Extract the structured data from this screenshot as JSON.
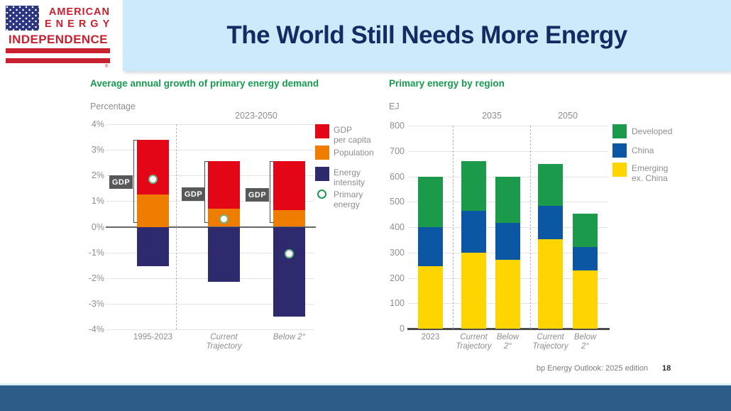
{
  "slide": {
    "logo": {
      "line1": "AMERICAN",
      "line2": "ENERGY",
      "line3": "INDEPENDENCE",
      "registered": "®"
    },
    "title": "The World Still Needs More Energy",
    "source": "bp Energy Outlook: 2025 edition",
    "page_number": "18"
  },
  "colors": {
    "title_text": "#152a63",
    "title_band": "#cdeafb",
    "heading_green": "#169a50",
    "bottom_bar": "#2d5c89",
    "gdp_red": "#e30617",
    "population_orange": "#ee7d00",
    "energy_intensity_navy": "#2e2a6e",
    "developed_green": "#1a9a4a",
    "china_blue": "#0b57a4",
    "emerging_yellow": "#ffd500",
    "logo_red": "#c8202f",
    "logo_navy": "#2a3480"
  },
  "chart_data": [
    {
      "type": "bar",
      "title": "Average annual growth of primary energy demand",
      "axis_unit": "Percentage",
      "top_label": "2023-2050",
      "ylim": [
        -4,
        4
      ],
      "ytick_labels": [
        "4%",
        "3%",
        "2%",
        "1%",
        "0%",
        "-1%",
        "-2%",
        "-3%",
        "-4%"
      ],
      "categories": [
        "1995-2023",
        "Current\nTrajectory",
        "Below 2°"
      ],
      "series": [
        {
          "name": "Population",
          "color": "#ee7d00",
          "values": [
            1.25,
            0.7,
            0.65
          ]
        },
        {
          "name": "GDP per capita",
          "color": "#e30617",
          "values": [
            2.15,
            1.85,
            1.9
          ]
        },
        {
          "name": "Energy intensity",
          "color": "#2e2a6e",
          "values": [
            -1.55,
            -2.15,
            -3.5
          ]
        }
      ],
      "markers": {
        "name": "Primary energy",
        "values": [
          1.85,
          0.3,
          -1.05
        ]
      },
      "bracket": {
        "label": "GDP",
        "tops": [
          3.4,
          2.55,
          2.55
        ]
      },
      "legend": [
        {
          "label": "GDP\nper capita",
          "color": "#e30617",
          "type": "square"
        },
        {
          "label": "Population",
          "color": "#ee7d00",
          "type": "square"
        },
        {
          "label": "Energy\nintensity",
          "color": "#2e2a6e",
          "type": "square"
        },
        {
          "label": "Primary\nenergy",
          "color": "#1a9a50",
          "type": "ring"
        }
      ]
    },
    {
      "type": "bar",
      "title": "Primary energy by region",
      "axis_unit": "EJ",
      "group_labels": [
        "2035",
        "2050"
      ],
      "ylim": [
        0,
        800
      ],
      "ytick_labels": [
        "800",
        "700",
        "600",
        "500",
        "400",
        "300",
        "200",
        "100",
        "0"
      ],
      "categories": [
        "2023",
        "Current\nTrajectory",
        "Below\n2°",
        "Current\nTrajectory",
        "Below\n2°"
      ],
      "series": [
        {
          "name": "Emerging ex. China",
          "color": "#ffd500",
          "values": [
            245,
            300,
            272,
            352,
            228
          ]
        },
        {
          "name": "China",
          "color": "#0b57a4",
          "values": [
            155,
            165,
            146,
            133,
            94
          ]
        },
        {
          "name": "Developed",
          "color": "#1a9a4a",
          "values": [
            200,
            195,
            180,
            165,
            130
          ]
        }
      ],
      "legend": [
        {
          "label": "Developed",
          "color": "#1a9a4a",
          "type": "square"
        },
        {
          "label": "China",
          "color": "#0b57a4",
          "type": "square"
        },
        {
          "label": "Emerging\nex. China",
          "color": "#ffd500",
          "type": "square"
        }
      ]
    }
  ]
}
